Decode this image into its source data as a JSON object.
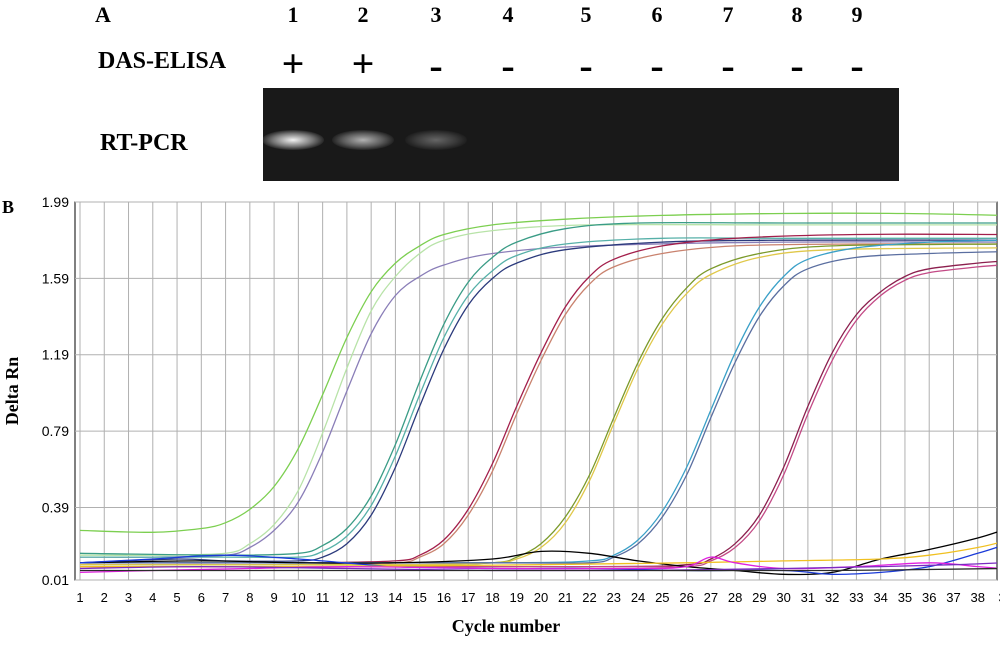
{
  "panel_a": {
    "letter": "A",
    "lanes": [
      "1",
      "2",
      "3",
      "4",
      "5",
      "6",
      "7",
      "8",
      "9"
    ],
    "row1_label": "DAS-ELISA",
    "row1_signs": [
      "+",
      "+",
      "-",
      "-",
      "-",
      "-",
      "-",
      "-",
      "-"
    ],
    "row2_label": "RT-PCR",
    "bands": [
      {
        "lane": "1",
        "intensity": 1.0
      },
      {
        "lane": "2",
        "intensity": 0.7
      },
      {
        "lane": "3",
        "intensity": 0.35
      }
    ]
  },
  "panel_b": {
    "letter": "B"
  },
  "chart_data": {
    "type": "line",
    "title": "",
    "xlabel": "Cycle number",
    "ylabel": "Delta Rn",
    "x_ticks": [
      "1",
      "2",
      "3",
      "4",
      "5",
      "6",
      "7",
      "8",
      "9",
      "10",
      "11",
      "12",
      "13",
      "14",
      "15",
      "16",
      "17",
      "18",
      "19",
      "20",
      "21",
      "22",
      "23",
      "24",
      "25",
      "26",
      "27",
      "28",
      "29",
      "30",
      "31",
      "32",
      "33",
      "34",
      "35",
      "36",
      "37",
      "38",
      "3"
    ],
    "y_ticks": [
      "0.01",
      "0.39",
      "0.79",
      "1.19",
      "1.59",
      "1.99"
    ],
    "xlim": [
      1,
      39
    ],
    "ylim": [
      0.01,
      1.99
    ],
    "grid": true,
    "series": [
      {
        "color": "#7ccf50",
        "points": [
          [
            1,
            0.27
          ],
          [
            4,
            0.26
          ],
          [
            6,
            0.28
          ],
          [
            7,
            0.31
          ],
          [
            8,
            0.38
          ],
          [
            9,
            0.5
          ],
          [
            10,
            0.7
          ],
          [
            11,
            0.98
          ],
          [
            12,
            1.28
          ],
          [
            13,
            1.52
          ],
          [
            14,
            1.67
          ],
          [
            15,
            1.76
          ],
          [
            16,
            1.82
          ],
          [
            18,
            1.87
          ],
          [
            21,
            1.9
          ],
          [
            25,
            1.92
          ],
          [
            30,
            1.93
          ],
          [
            35,
            1.93
          ],
          [
            39,
            1.92
          ]
        ]
      },
      {
        "color": "#b8e3a8",
        "points": [
          [
            1,
            0.14
          ],
          [
            4,
            0.14
          ],
          [
            7,
            0.15
          ],
          [
            8,
            0.2
          ],
          [
            9,
            0.3
          ],
          [
            10,
            0.48
          ],
          [
            11,
            0.78
          ],
          [
            12,
            1.12
          ],
          [
            13,
            1.42
          ],
          [
            14,
            1.6
          ],
          [
            15,
            1.72
          ],
          [
            16,
            1.79
          ],
          [
            18,
            1.84
          ],
          [
            22,
            1.87
          ],
          [
            30,
            1.87
          ],
          [
            39,
            1.87
          ]
        ]
      },
      {
        "color": "#8a7eb8",
        "points": [
          [
            1,
            0.13
          ],
          [
            4,
            0.13
          ],
          [
            7,
            0.14
          ],
          [
            8,
            0.18
          ],
          [
            9,
            0.27
          ],
          [
            10,
            0.42
          ],
          [
            11,
            0.68
          ],
          [
            12,
            1.0
          ],
          [
            13,
            1.3
          ],
          [
            14,
            1.5
          ],
          [
            15,
            1.6
          ],
          [
            16,
            1.66
          ],
          [
            18,
            1.72
          ],
          [
            22,
            1.76
          ],
          [
            30,
            1.78
          ],
          [
            39,
            1.78
          ]
        ]
      },
      {
        "color": "#3a9c86",
        "points": [
          [
            1,
            0.15
          ],
          [
            7,
            0.14
          ],
          [
            10,
            0.15
          ],
          [
            11,
            0.19
          ],
          [
            12,
            0.28
          ],
          [
            13,
            0.45
          ],
          [
            14,
            0.72
          ],
          [
            15,
            1.05
          ],
          [
            16,
            1.35
          ],
          [
            17,
            1.57
          ],
          [
            18,
            1.7
          ],
          [
            19,
            1.78
          ],
          [
            21,
            1.85
          ],
          [
            24,
            1.88
          ],
          [
            30,
            1.88
          ],
          [
            39,
            1.88
          ]
        ]
      },
      {
        "color": "#56b0a8",
        "points": [
          [
            1,
            0.13
          ],
          [
            7,
            0.13
          ],
          [
            10,
            0.13
          ],
          [
            11,
            0.16
          ],
          [
            12,
            0.24
          ],
          [
            13,
            0.4
          ],
          [
            14,
            0.66
          ],
          [
            15,
            0.98
          ],
          [
            16,
            1.28
          ],
          [
            17,
            1.5
          ],
          [
            18,
            1.63
          ],
          [
            19,
            1.71
          ],
          [
            21,
            1.77
          ],
          [
            25,
            1.8
          ],
          [
            30,
            1.8
          ],
          [
            39,
            1.8
          ]
        ]
      },
      {
        "color": "#2b3a7c",
        "points": [
          [
            1,
            0.1
          ],
          [
            5,
            0.12
          ],
          [
            7,
            0.11
          ],
          [
            10,
            0.11
          ],
          [
            11,
            0.13
          ],
          [
            12,
            0.2
          ],
          [
            13,
            0.35
          ],
          [
            14,
            0.6
          ],
          [
            15,
            0.92
          ],
          [
            16,
            1.22
          ],
          [
            17,
            1.45
          ],
          [
            18,
            1.59
          ],
          [
            19,
            1.67
          ],
          [
            21,
            1.74
          ],
          [
            25,
            1.78
          ],
          [
            30,
            1.79
          ],
          [
            39,
            1.79
          ]
        ]
      },
      {
        "color": "#a31f4b",
        "points": [
          [
            1,
            0.1
          ],
          [
            10,
            0.1
          ],
          [
            14,
            0.11
          ],
          [
            15,
            0.14
          ],
          [
            16,
            0.22
          ],
          [
            17,
            0.38
          ],
          [
            18,
            0.62
          ],
          [
            19,
            0.92
          ],
          [
            20,
            1.2
          ],
          [
            21,
            1.44
          ],
          [
            22,
            1.6
          ],
          [
            23,
            1.69
          ],
          [
            25,
            1.76
          ],
          [
            28,
            1.8
          ],
          [
            33,
            1.82
          ],
          [
            39,
            1.82
          ]
        ]
      },
      {
        "color": "#c9826e",
        "points": [
          [
            1,
            0.1
          ],
          [
            10,
            0.1
          ],
          [
            14,
            0.1
          ],
          [
            15,
            0.13
          ],
          [
            16,
            0.2
          ],
          [
            17,
            0.35
          ],
          [
            18,
            0.58
          ],
          [
            19,
            0.88
          ],
          [
            20,
            1.16
          ],
          [
            21,
            1.4
          ],
          [
            22,
            1.56
          ],
          [
            23,
            1.65
          ],
          [
            25,
            1.72
          ],
          [
            28,
            1.76
          ],
          [
            33,
            1.77
          ],
          [
            39,
            1.77
          ]
        ]
      },
      {
        "color": "#7b9a2a",
        "points": [
          [
            1,
            0.09
          ],
          [
            14,
            0.09
          ],
          [
            18,
            0.1
          ],
          [
            19,
            0.13
          ],
          [
            20,
            0.2
          ],
          [
            21,
            0.34
          ],
          [
            22,
            0.56
          ],
          [
            23,
            0.86
          ],
          [
            24,
            1.15
          ],
          [
            25,
            1.38
          ],
          [
            26,
            1.54
          ],
          [
            27,
            1.64
          ],
          [
            29,
            1.72
          ],
          [
            32,
            1.76
          ],
          [
            39,
            1.77
          ]
        ]
      },
      {
        "color": "#e0c84a",
        "points": [
          [
            1,
            0.09
          ],
          [
            14,
            0.09
          ],
          [
            18,
            0.1
          ],
          [
            19,
            0.12
          ],
          [
            20,
            0.18
          ],
          [
            21,
            0.31
          ],
          [
            22,
            0.53
          ],
          [
            23,
            0.83
          ],
          [
            24,
            1.12
          ],
          [
            25,
            1.35
          ],
          [
            26,
            1.51
          ],
          [
            27,
            1.61
          ],
          [
            29,
            1.7
          ],
          [
            32,
            1.74
          ],
          [
            39,
            1.75
          ]
        ]
      },
      {
        "color": "#3aa0c8",
        "points": [
          [
            1,
            0.1
          ],
          [
            18,
            0.1
          ],
          [
            22,
            0.11
          ],
          [
            23,
            0.14
          ],
          [
            24,
            0.22
          ],
          [
            25,
            0.37
          ],
          [
            26,
            0.6
          ],
          [
            27,
            0.9
          ],
          [
            28,
            1.2
          ],
          [
            29,
            1.44
          ],
          [
            30,
            1.6
          ],
          [
            31,
            1.69
          ],
          [
            33,
            1.75
          ],
          [
            36,
            1.78
          ],
          [
            39,
            1.79
          ]
        ]
      },
      {
        "color": "#5a6ea0",
        "points": [
          [
            1,
            0.1
          ],
          [
            18,
            0.1
          ],
          [
            22,
            0.1
          ],
          [
            23,
            0.13
          ],
          [
            24,
            0.2
          ],
          [
            25,
            0.34
          ],
          [
            26,
            0.56
          ],
          [
            27,
            0.86
          ],
          [
            28,
            1.15
          ],
          [
            29,
            1.39
          ],
          [
            30,
            1.55
          ],
          [
            31,
            1.64
          ],
          [
            33,
            1.7
          ],
          [
            36,
            1.72
          ],
          [
            39,
            1.73
          ]
        ]
      },
      {
        "color": "#8c1f4e",
        "points": [
          [
            1,
            0.08
          ],
          [
            22,
            0.08
          ],
          [
            26,
            0.09
          ],
          [
            27,
            0.12
          ],
          [
            28,
            0.2
          ],
          [
            29,
            0.35
          ],
          [
            30,
            0.6
          ],
          [
            31,
            0.92
          ],
          [
            32,
            1.2
          ],
          [
            33,
            1.4
          ],
          [
            34,
            1.52
          ],
          [
            35,
            1.6
          ],
          [
            36,
            1.64
          ],
          [
            38,
            1.67
          ],
          [
            39,
            1.68
          ]
        ]
      },
      {
        "color": "#c34a86",
        "points": [
          [
            1,
            0.08
          ],
          [
            22,
            0.08
          ],
          [
            26,
            0.08
          ],
          [
            27,
            0.11
          ],
          [
            28,
            0.18
          ],
          [
            29,
            0.32
          ],
          [
            30,
            0.56
          ],
          [
            31,
            0.88
          ],
          [
            32,
            1.16
          ],
          [
            33,
            1.37
          ],
          [
            34,
            1.5
          ],
          [
            35,
            1.58
          ],
          [
            36,
            1.62
          ],
          [
            38,
            1.65
          ],
          [
            39,
            1.66
          ]
        ]
      },
      {
        "color": "#000000",
        "points": [
          [
            1,
            0.1
          ],
          [
            6,
            0.11
          ],
          [
            10,
            0.1
          ],
          [
            14,
            0.1
          ],
          [
            18,
            0.12
          ],
          [
            20,
            0.16
          ],
          [
            22,
            0.15
          ],
          [
            24,
            0.11
          ],
          [
            26,
            0.08
          ],
          [
            28,
            0.06
          ],
          [
            30,
            0.04
          ],
          [
            32,
            0.05
          ],
          [
            34,
            0.12
          ],
          [
            36,
            0.17
          ],
          [
            38,
            0.23
          ],
          [
            39,
            0.27
          ]
        ]
      },
      {
        "color": "#1a3ad8",
        "points": [
          [
            1,
            0.1
          ],
          [
            4,
            0.12
          ],
          [
            7,
            0.14
          ],
          [
            10,
            0.12
          ],
          [
            14,
            0.08
          ],
          [
            18,
            0.07
          ],
          [
            22,
            0.07
          ],
          [
            26,
            0.06
          ],
          [
            30,
            0.06
          ],
          [
            32,
            0.04
          ],
          [
            34,
            0.05
          ],
          [
            36,
            0.08
          ],
          [
            38,
            0.15
          ],
          [
            39,
            0.19
          ]
        ]
      },
      {
        "color": "#f0c020",
        "points": [
          [
            1,
            0.08
          ],
          [
            10,
            0.08
          ],
          [
            20,
            0.09
          ],
          [
            26,
            0.1
          ],
          [
            30,
            0.11
          ],
          [
            34,
            0.12
          ],
          [
            36,
            0.14
          ],
          [
            38,
            0.18
          ],
          [
            39,
            0.21
          ]
        ]
      },
      {
        "color": "#e020e0",
        "points": [
          [
            1,
            0.05
          ],
          [
            4,
            0.06
          ],
          [
            8,
            0.07
          ],
          [
            12,
            0.08
          ],
          [
            18,
            0.07
          ],
          [
            24,
            0.07
          ],
          [
            26,
            0.08
          ],
          [
            27,
            0.13
          ],
          [
            28,
            0.1
          ],
          [
            30,
            0.07
          ],
          [
            33,
            0.08
          ],
          [
            36,
            0.1
          ],
          [
            38,
            0.08
          ],
          [
            39,
            0.07
          ]
        ]
      },
      {
        "color": "#7a2ac0",
        "points": [
          [
            1,
            0.07
          ],
          [
            6,
            0.08
          ],
          [
            12,
            0.07
          ],
          [
            18,
            0.06
          ],
          [
            24,
            0.06
          ],
          [
            30,
            0.07
          ],
          [
            34,
            0.08
          ],
          [
            37,
            0.09
          ],
          [
            39,
            0.1
          ]
        ]
      },
      {
        "color": "#2b2b2b",
        "points": [
          [
            1,
            0.06
          ],
          [
            8,
            0.06
          ],
          [
            16,
            0.06
          ],
          [
            24,
            0.06
          ],
          [
            32,
            0.06
          ],
          [
            39,
            0.07
          ]
        ]
      }
    ]
  }
}
